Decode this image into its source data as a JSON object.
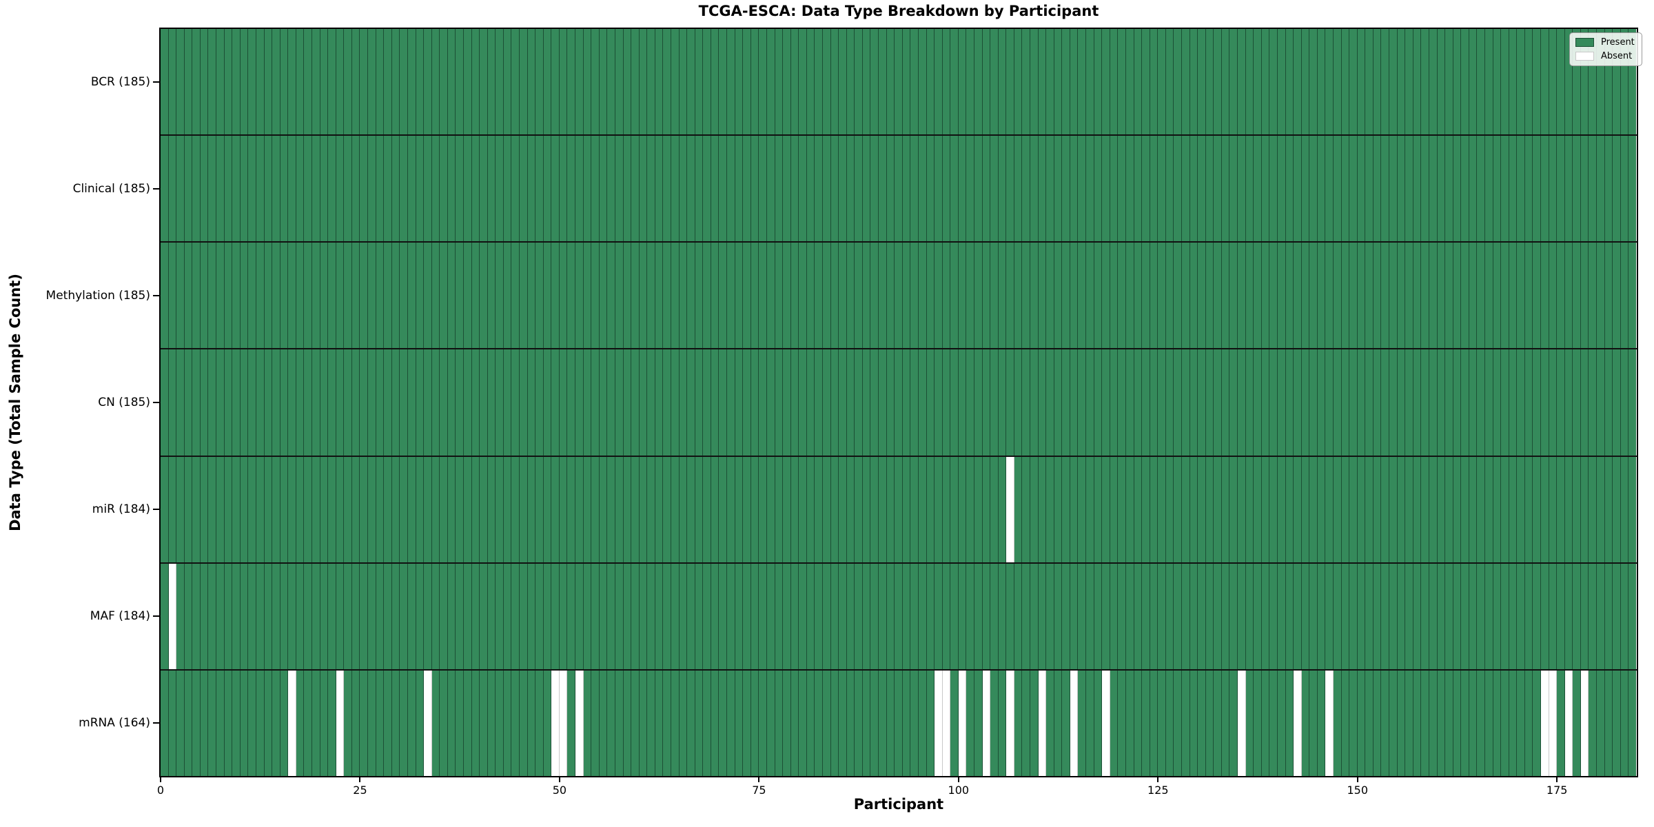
{
  "title": "TCGA-ESCA: Data Type Breakdown by Participant",
  "axes": {
    "xlabel": "Participant",
    "ylabel": "Data Type (Total Sample Count)"
  },
  "legend": {
    "items": [
      {
        "label": "Present",
        "color": "#358a5b"
      },
      {
        "label": "Absent",
        "color": "#ffffff"
      }
    ]
  },
  "colors": {
    "present_fill": "#358a5b",
    "present_edge": "#1c4f35",
    "absent_fill": "#ffffff",
    "absent_edge": "#c8c8c8",
    "row_separator": "#111111",
    "spine": "#000000",
    "background": "#ffffff"
  },
  "chart_data": {
    "type": "heatmap",
    "title": "TCGA-ESCA: Data Type Breakdown by Participant",
    "xlabel": "Participant",
    "ylabel": "Data Type (Total Sample Count)",
    "n_participants": 185,
    "x_ticks": [
      0,
      25,
      50,
      75,
      100,
      125,
      150,
      175
    ],
    "legend_entries": [
      "Present",
      "Absent"
    ],
    "legend_position": "upper right",
    "grid": false,
    "rows": [
      {
        "label": "BCR (185)",
        "data_type": "BCR",
        "present_count": 185,
        "absent_participants": []
      },
      {
        "label": "Clinical (185)",
        "data_type": "Clinical",
        "present_count": 185,
        "absent_participants": []
      },
      {
        "label": "Methylation (185)",
        "data_type": "Methylation",
        "present_count": 185,
        "absent_participants": []
      },
      {
        "label": "CN (185)",
        "data_type": "CN",
        "present_count": 185,
        "absent_participants": []
      },
      {
        "label": "miR (184)",
        "data_type": "miR",
        "present_count": 184,
        "absent_participants": [
          106
        ]
      },
      {
        "label": "MAF (184)",
        "data_type": "MAF",
        "present_count": 184,
        "absent_participants": [
          1
        ]
      },
      {
        "label": "mRNA (164)",
        "data_type": "mRNA",
        "present_count": 164,
        "absent_participants": [
          16,
          22,
          33,
          49,
          50,
          52,
          97,
          98,
          100,
          103,
          106,
          110,
          114,
          118,
          135,
          142,
          146,
          173,
          174,
          176,
          178
        ]
      }
    ]
  }
}
